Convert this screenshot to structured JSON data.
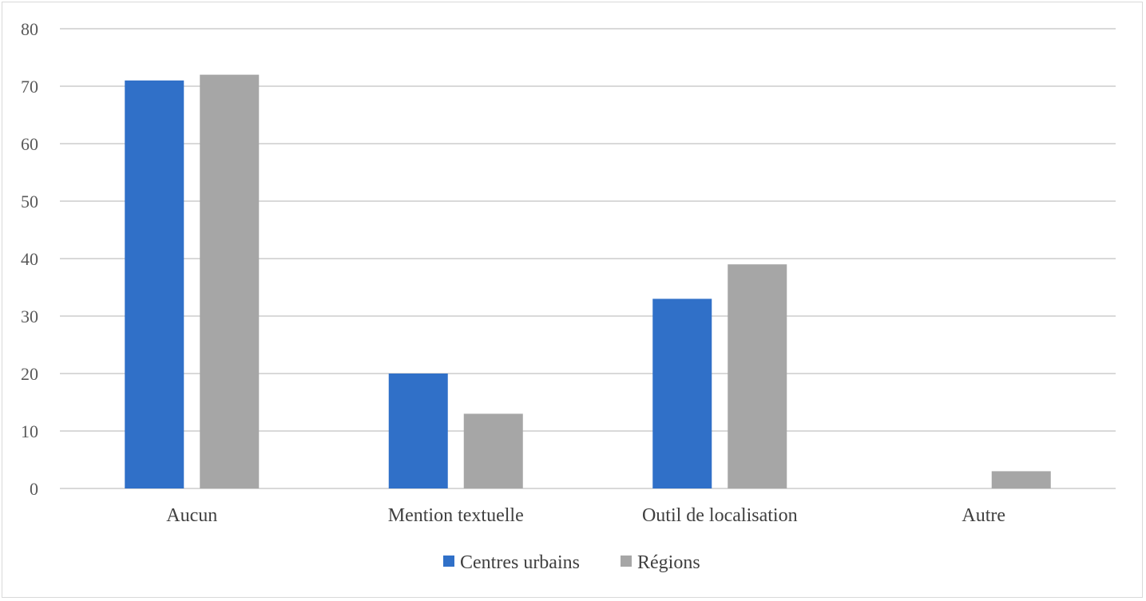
{
  "chart_data": {
    "type": "bar",
    "categories": [
      "Aucun",
      "Mention textuelle",
      "Outil de localisation",
      "Autre"
    ],
    "series": [
      {
        "name": "Centres urbains",
        "color": "#3070c8",
        "values": [
          71,
          20,
          33,
          0
        ]
      },
      {
        "name": "Régions",
        "color": "#a6a6a6",
        "values": [
          72,
          13,
          39,
          3
        ]
      }
    ],
    "ylim": [
      0,
      80
    ],
    "yticks": [
      0,
      10,
      20,
      30,
      40,
      50,
      60,
      70,
      80
    ],
    "grid": true,
    "legend_position": "bottom"
  }
}
